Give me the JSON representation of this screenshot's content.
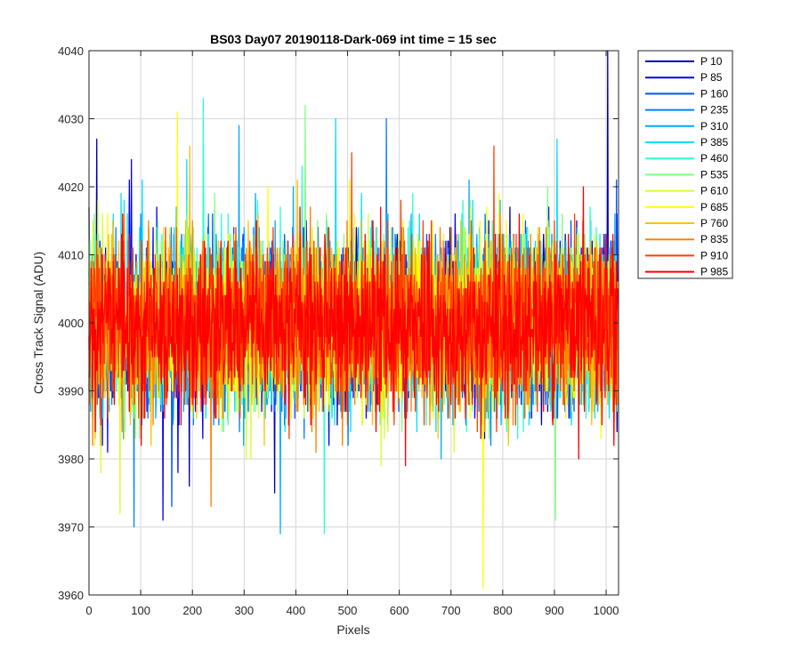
{
  "chart_data": {
    "type": "line",
    "title": "BS03 Day07 20190118-Dark-069 int time = 15 sec",
    "xlabel": "Pixels",
    "ylabel": "Cross Track Signal (ADU)",
    "xlim": [
      0,
      1024
    ],
    "ylim": [
      3960,
      4040
    ],
    "x_ticks": [
      0,
      100,
      200,
      300,
      400,
      500,
      600,
      700,
      800,
      900,
      1000
    ],
    "y_ticks": [
      3960,
      3970,
      3980,
      3990,
      4000,
      4010,
      4020,
      4030,
      4040
    ],
    "grid": true,
    "legend_position": "outside-top-right",
    "colormap": "jet",
    "num_points_per_series": 1024,
    "series": [
      {
        "name": "P 10",
        "color": "#0000a8",
        "mean": 4000,
        "std": 6,
        "spikes": [
          [
            15,
            4027
          ],
          [
            1003,
            4040
          ]
        ]
      },
      {
        "name": "P 85",
        "color": "#0000ff",
        "mean": 4000,
        "std": 6,
        "spikes": [
          [
            82,
            4024
          ],
          [
            143,
            3971
          ]
        ]
      },
      {
        "name": "P 160",
        "color": "#0053ff",
        "mean": 4000,
        "std": 6,
        "spikes": [
          [
            160,
            3973
          ],
          [
            1020,
            4021
          ]
        ]
      },
      {
        "name": "P 235",
        "color": "#0080ff",
        "mean": 4000,
        "std": 6,
        "spikes": [
          [
            87,
            3970
          ],
          [
            575,
            4030
          ]
        ]
      },
      {
        "name": "P 310",
        "color": "#00aaff",
        "mean": 4000,
        "std": 6,
        "spikes": [
          [
            290,
            4029
          ],
          [
            370,
            3969
          ]
        ]
      },
      {
        "name": "P 385",
        "color": "#00e0ff",
        "mean": 4000,
        "std": 6,
        "spikes": [
          [
            477,
            4030
          ],
          [
            905,
            4027
          ]
        ]
      },
      {
        "name": "P 460",
        "color": "#2affd5",
        "mean": 4000,
        "std": 6,
        "spikes": [
          [
            221,
            4033
          ],
          [
            455,
            3969
          ]
        ]
      },
      {
        "name": "P 535",
        "color": "#7fff80",
        "mean": 4000,
        "std": 6,
        "spikes": [
          [
            418,
            4032
          ],
          [
            902,
            3971
          ]
        ]
      },
      {
        "name": "P 610",
        "color": "#d5ff2a",
        "mean": 4000,
        "std": 6,
        "spikes": [
          [
            60,
            3972
          ]
        ]
      },
      {
        "name": "P 685",
        "color": "#ffff00",
        "mean": 4000,
        "std": 6,
        "spikes": [
          [
            171,
            4031
          ],
          [
            762,
            3961
          ]
        ]
      },
      {
        "name": "P 760",
        "color": "#ffc000",
        "mean": 4000,
        "std": 6,
        "spikes": [
          [
            195,
            4026
          ]
        ]
      },
      {
        "name": "P 835",
        "color": "#ff8000",
        "mean": 4000,
        "std": 6,
        "spikes": [
          [
            236,
            3973
          ]
        ]
      },
      {
        "name": "P 910",
        "color": "#ff4000",
        "mean": 4000,
        "std": 6,
        "spikes": [
          [
            508,
            4025
          ],
          [
            783,
            4026
          ]
        ]
      },
      {
        "name": "P 985",
        "color": "#ff0000",
        "mean": 3999,
        "std": 6,
        "spikes": []
      }
    ]
  }
}
